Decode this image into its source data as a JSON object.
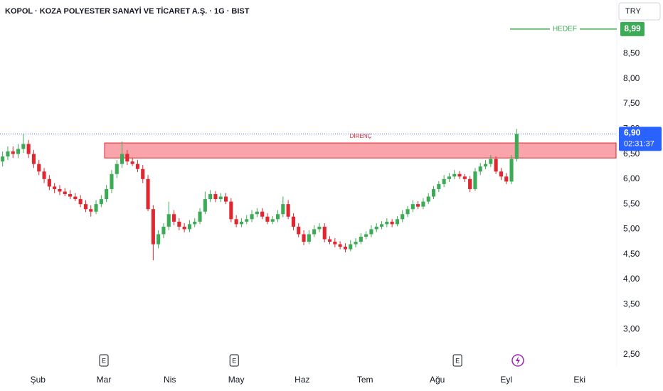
{
  "chart_data": {
    "type": "candlestick",
    "title": "KOPOL · KOZA POLYESTER SANAYİ VE TİCARET A.Ş. · 1G · BIST",
    "currency": "TRY",
    "up_color": "#3cab55",
    "down_color": "#e0262f",
    "open": [
      6.35,
      6.45,
      6.55,
      6.5,
      6.6,
      6.7,
      6.5,
      6.3,
      6.15,
      6.0,
      5.85,
      5.8,
      5.75,
      5.7,
      5.65,
      5.6,
      5.5,
      5.4,
      5.35,
      5.5,
      5.6,
      5.8,
      6.1,
      6.3,
      6.5,
      6.35,
      6.3,
      6.2,
      6.0,
      5.4,
      4.7,
      4.9,
      5.05,
      5.3,
      5.15,
      5.05,
      5.0,
      5.1,
      5.15,
      5.35,
      5.6,
      5.7,
      5.6,
      5.65,
      5.55,
      5.2,
      5.1,
      5.15,
      5.2,
      5.3,
      5.35,
      5.25,
      5.15,
      5.2,
      5.3,
      5.5,
      5.25,
      5.05,
      4.9,
      4.75,
      4.9,
      5.0,
      5.05,
      4.8,
      4.75,
      4.7,
      4.65,
      4.6,
      4.7,
      4.75,
      4.85,
      4.9,
      5.0,
      5.05,
      5.1,
      5.15,
      5.1,
      5.2,
      5.3,
      5.4,
      5.5,
      5.45,
      5.55,
      5.65,
      5.8,
      5.9,
      6.0,
      6.05,
      6.1,
      6.05,
      6.0,
      5.8,
      6.15,
      6.25,
      6.3,
      6.4,
      6.15,
      6.05,
      5.95,
      6.4
    ],
    "high": [
      6.55,
      6.65,
      6.65,
      6.7,
      6.9,
      6.78,
      6.58,
      6.38,
      6.22,
      6.08,
      5.92,
      5.88,
      5.82,
      5.78,
      5.72,
      5.68,
      5.58,
      5.48,
      5.58,
      5.68,
      5.88,
      6.18,
      6.38,
      6.75,
      6.58,
      6.42,
      6.38,
      6.28,
      6.08,
      5.48,
      4.98,
      5.12,
      5.55,
      5.38,
      5.22,
      5.12,
      5.18,
      5.22,
      5.42,
      5.75,
      5.78,
      5.76,
      5.72,
      5.72,
      5.62,
      5.28,
      5.22,
      5.28,
      5.38,
      5.42,
      5.42,
      5.32,
      5.26,
      5.38,
      5.65,
      5.58,
      5.32,
      5.12,
      4.98,
      4.98,
      5.08,
      5.12,
      5.12,
      4.86,
      4.82,
      4.76,
      4.72,
      4.78,
      4.82,
      4.92,
      4.96,
      5.08,
      5.12,
      5.16,
      5.22,
      5.2,
      5.26,
      5.38,
      5.46,
      5.58,
      5.56,
      5.62,
      5.72,
      5.86,
      5.96,
      6.08,
      6.12,
      6.18,
      6.16,
      6.1,
      6.06,
      6.22,
      6.32,
      6.38,
      6.48,
      6.45,
      6.22,
      6.12,
      6.48,
      7.0
    ],
    "low": [
      6.25,
      6.38,
      6.42,
      6.42,
      6.52,
      6.42,
      6.22,
      6.08,
      5.92,
      5.78,
      5.72,
      5.68,
      5.66,
      5.6,
      5.56,
      5.44,
      5.34,
      5.25,
      5.3,
      5.44,
      5.54,
      5.72,
      6.02,
      6.22,
      6.28,
      6.26,
      6.14,
      5.92,
      5.36,
      4.38,
      4.62,
      4.82,
      4.98,
      5.08,
      4.98,
      4.94,
      4.94,
      5.04,
      5.1,
      5.3,
      5.54,
      5.54,
      5.54,
      5.5,
      5.14,
      5.04,
      5.04,
      5.1,
      5.14,
      5.24,
      5.2,
      5.1,
      5.1,
      5.14,
      5.24,
      5.2,
      4.98,
      4.84,
      4.68,
      4.7,
      4.84,
      4.94,
      4.74,
      4.7,
      4.64,
      4.6,
      4.54,
      4.56,
      4.64,
      4.7,
      4.8,
      4.84,
      4.94,
      5.0,
      5.04,
      5.04,
      5.06,
      5.14,
      5.24,
      5.34,
      5.4,
      5.4,
      5.5,
      5.6,
      5.74,
      5.84,
      5.94,
      6.0,
      6.0,
      5.94,
      5.74,
      5.76,
      6.08,
      6.2,
      6.24,
      6.1,
      5.98,
      5.9,
      5.9,
      6.35
    ],
    "close": [
      6.45,
      6.55,
      6.5,
      6.6,
      6.7,
      6.5,
      6.3,
      6.15,
      6.0,
      5.85,
      5.8,
      5.75,
      5.7,
      5.65,
      5.6,
      5.5,
      5.4,
      5.35,
      5.5,
      5.6,
      5.8,
      6.1,
      6.3,
      6.5,
      6.35,
      6.3,
      6.2,
      6.0,
      5.4,
      4.7,
      4.9,
      5.05,
      5.3,
      5.15,
      5.05,
      5.0,
      5.1,
      5.15,
      5.35,
      5.6,
      5.7,
      5.6,
      5.65,
      5.55,
      5.2,
      5.1,
      5.15,
      5.2,
      5.3,
      5.35,
      5.25,
      5.15,
      5.2,
      5.3,
      5.5,
      5.25,
      5.05,
      4.9,
      4.75,
      4.9,
      5.0,
      5.05,
      4.8,
      4.75,
      4.7,
      4.65,
      4.6,
      4.7,
      4.75,
      4.85,
      4.9,
      5.0,
      5.05,
      5.1,
      5.15,
      5.1,
      5.2,
      5.3,
      5.4,
      5.5,
      5.45,
      5.55,
      5.65,
      5.8,
      5.9,
      6.0,
      6.05,
      6.1,
      6.05,
      6.0,
      5.8,
      6.15,
      6.25,
      6.3,
      6.4,
      6.15,
      6.05,
      5.95,
      6.4,
      6.9
    ],
    "xlim": [
      -0.5,
      118.27
    ],
    "xticks": [
      {
        "value": 6.8,
        "label": "Şub"
      },
      {
        "value": 19.5,
        "label": "Mar"
      },
      {
        "value": 32.2,
        "label": "Nis"
      },
      {
        "value": 45,
        "label": "May"
      },
      {
        "value": 57.7,
        "label": "Haz"
      },
      {
        "value": 69.8,
        "label": "Tem"
      },
      {
        "value": 83.7,
        "label": "Ağu"
      },
      {
        "value": 97,
        "label": "Eyl"
      },
      {
        "value": 111.1,
        "label": "Eki"
      }
    ],
    "ylim": [
      2.27,
      9.57
    ],
    "yticks": [
      {
        "value": 2.5,
        "label": "2,50"
      },
      {
        "value": 3,
        "label": "3,00"
      },
      {
        "value": 3.5,
        "label": "3,50"
      },
      {
        "value": 4,
        "label": "4,00"
      },
      {
        "value": 4.5,
        "label": "4,50"
      },
      {
        "value": 5,
        "label": "5,00"
      },
      {
        "value": 5.5,
        "label": "5,50"
      },
      {
        "value": 6,
        "label": "6,00"
      },
      {
        "value": 6.5,
        "label": "6,50"
      },
      {
        "value": 7,
        "label": "7,00"
      },
      {
        "value": 7.5,
        "label": "7,50"
      },
      {
        "value": 8,
        "label": "8,00"
      },
      {
        "value": 8.5,
        "label": "8,50"
      }
    ],
    "target": {
      "label": "HEDEF",
      "value": 8.99,
      "value_label": "8,99",
      "color": "#3cab55"
    },
    "resistance": {
      "label": "DİRENÇ",
      "low": 6.42,
      "high": 6.72
    },
    "last_price": {
      "value": 6.9,
      "value_label": "6,90",
      "countdown": "02:31:37"
    },
    "events": [
      {
        "x": 19.5,
        "label": "E"
      },
      {
        "x": 44.6,
        "label": "E"
      },
      {
        "x": 87.6,
        "label": "E"
      }
    ]
  }
}
